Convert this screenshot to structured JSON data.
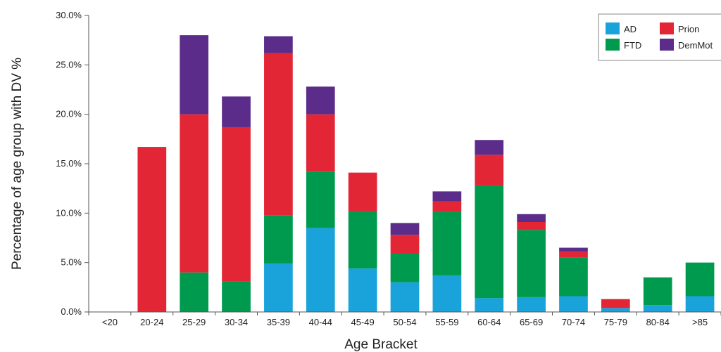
{
  "chart_data": {
    "type": "bar",
    "stacked": true,
    "title": "",
    "xlabel": "Age Bracket",
    "ylabel": "Percentage of age group with DV %",
    "ylim": [
      0,
      30
    ],
    "yticks": [
      "0.0%",
      "5.0%",
      "10.0%",
      "15.0%",
      "20.0%",
      "25.0%",
      "30.0%"
    ],
    "grid": false,
    "legend_position": "top-right",
    "categories": [
      "<20",
      "20-24",
      "25-29",
      "30-34",
      "35-39",
      "40-44",
      "45-49",
      "50-54",
      "55-59",
      "60-64",
      "65-69",
      "70-74",
      "75-79",
      "80-84",
      ">85"
    ],
    "series": [
      {
        "name": "AD",
        "color": "#1aa3db",
        "values": [
          0,
          0,
          0,
          0,
          4.9,
          8.5,
          4.4,
          3.0,
          3.7,
          1.4,
          1.5,
          1.6,
          0.4,
          0.7,
          1.6
        ]
      },
      {
        "name": "FTD",
        "color": "#009a4e",
        "values": [
          0,
          0,
          4.0,
          3.1,
          4.9,
          5.7,
          5.8,
          2.9,
          6.4,
          11.4,
          6.8,
          3.9,
          0,
          2.8,
          3.4
        ]
      },
      {
        "name": "Prion",
        "color": "#e32636",
        "values": [
          0,
          16.7,
          16.0,
          15.6,
          16.4,
          5.8,
          3.9,
          1.9,
          1.1,
          3.1,
          0.8,
          0.6,
          0.9,
          0,
          0
        ]
      },
      {
        "name": "DemMot",
        "color": "#5b2c8a",
        "values": [
          0,
          0,
          8.0,
          3.1,
          1.7,
          2.8,
          0,
          1.2,
          1.0,
          1.5,
          0.8,
          0.4,
          0,
          0,
          0
        ]
      }
    ],
    "legend": [
      {
        "name": "AD",
        "color": "#1aa3db"
      },
      {
        "name": "Prion",
        "color": "#e32636"
      },
      {
        "name": "FTD",
        "color": "#009a4e"
      },
      {
        "name": "DemMot",
        "color": "#5b2c8a"
      }
    ]
  }
}
